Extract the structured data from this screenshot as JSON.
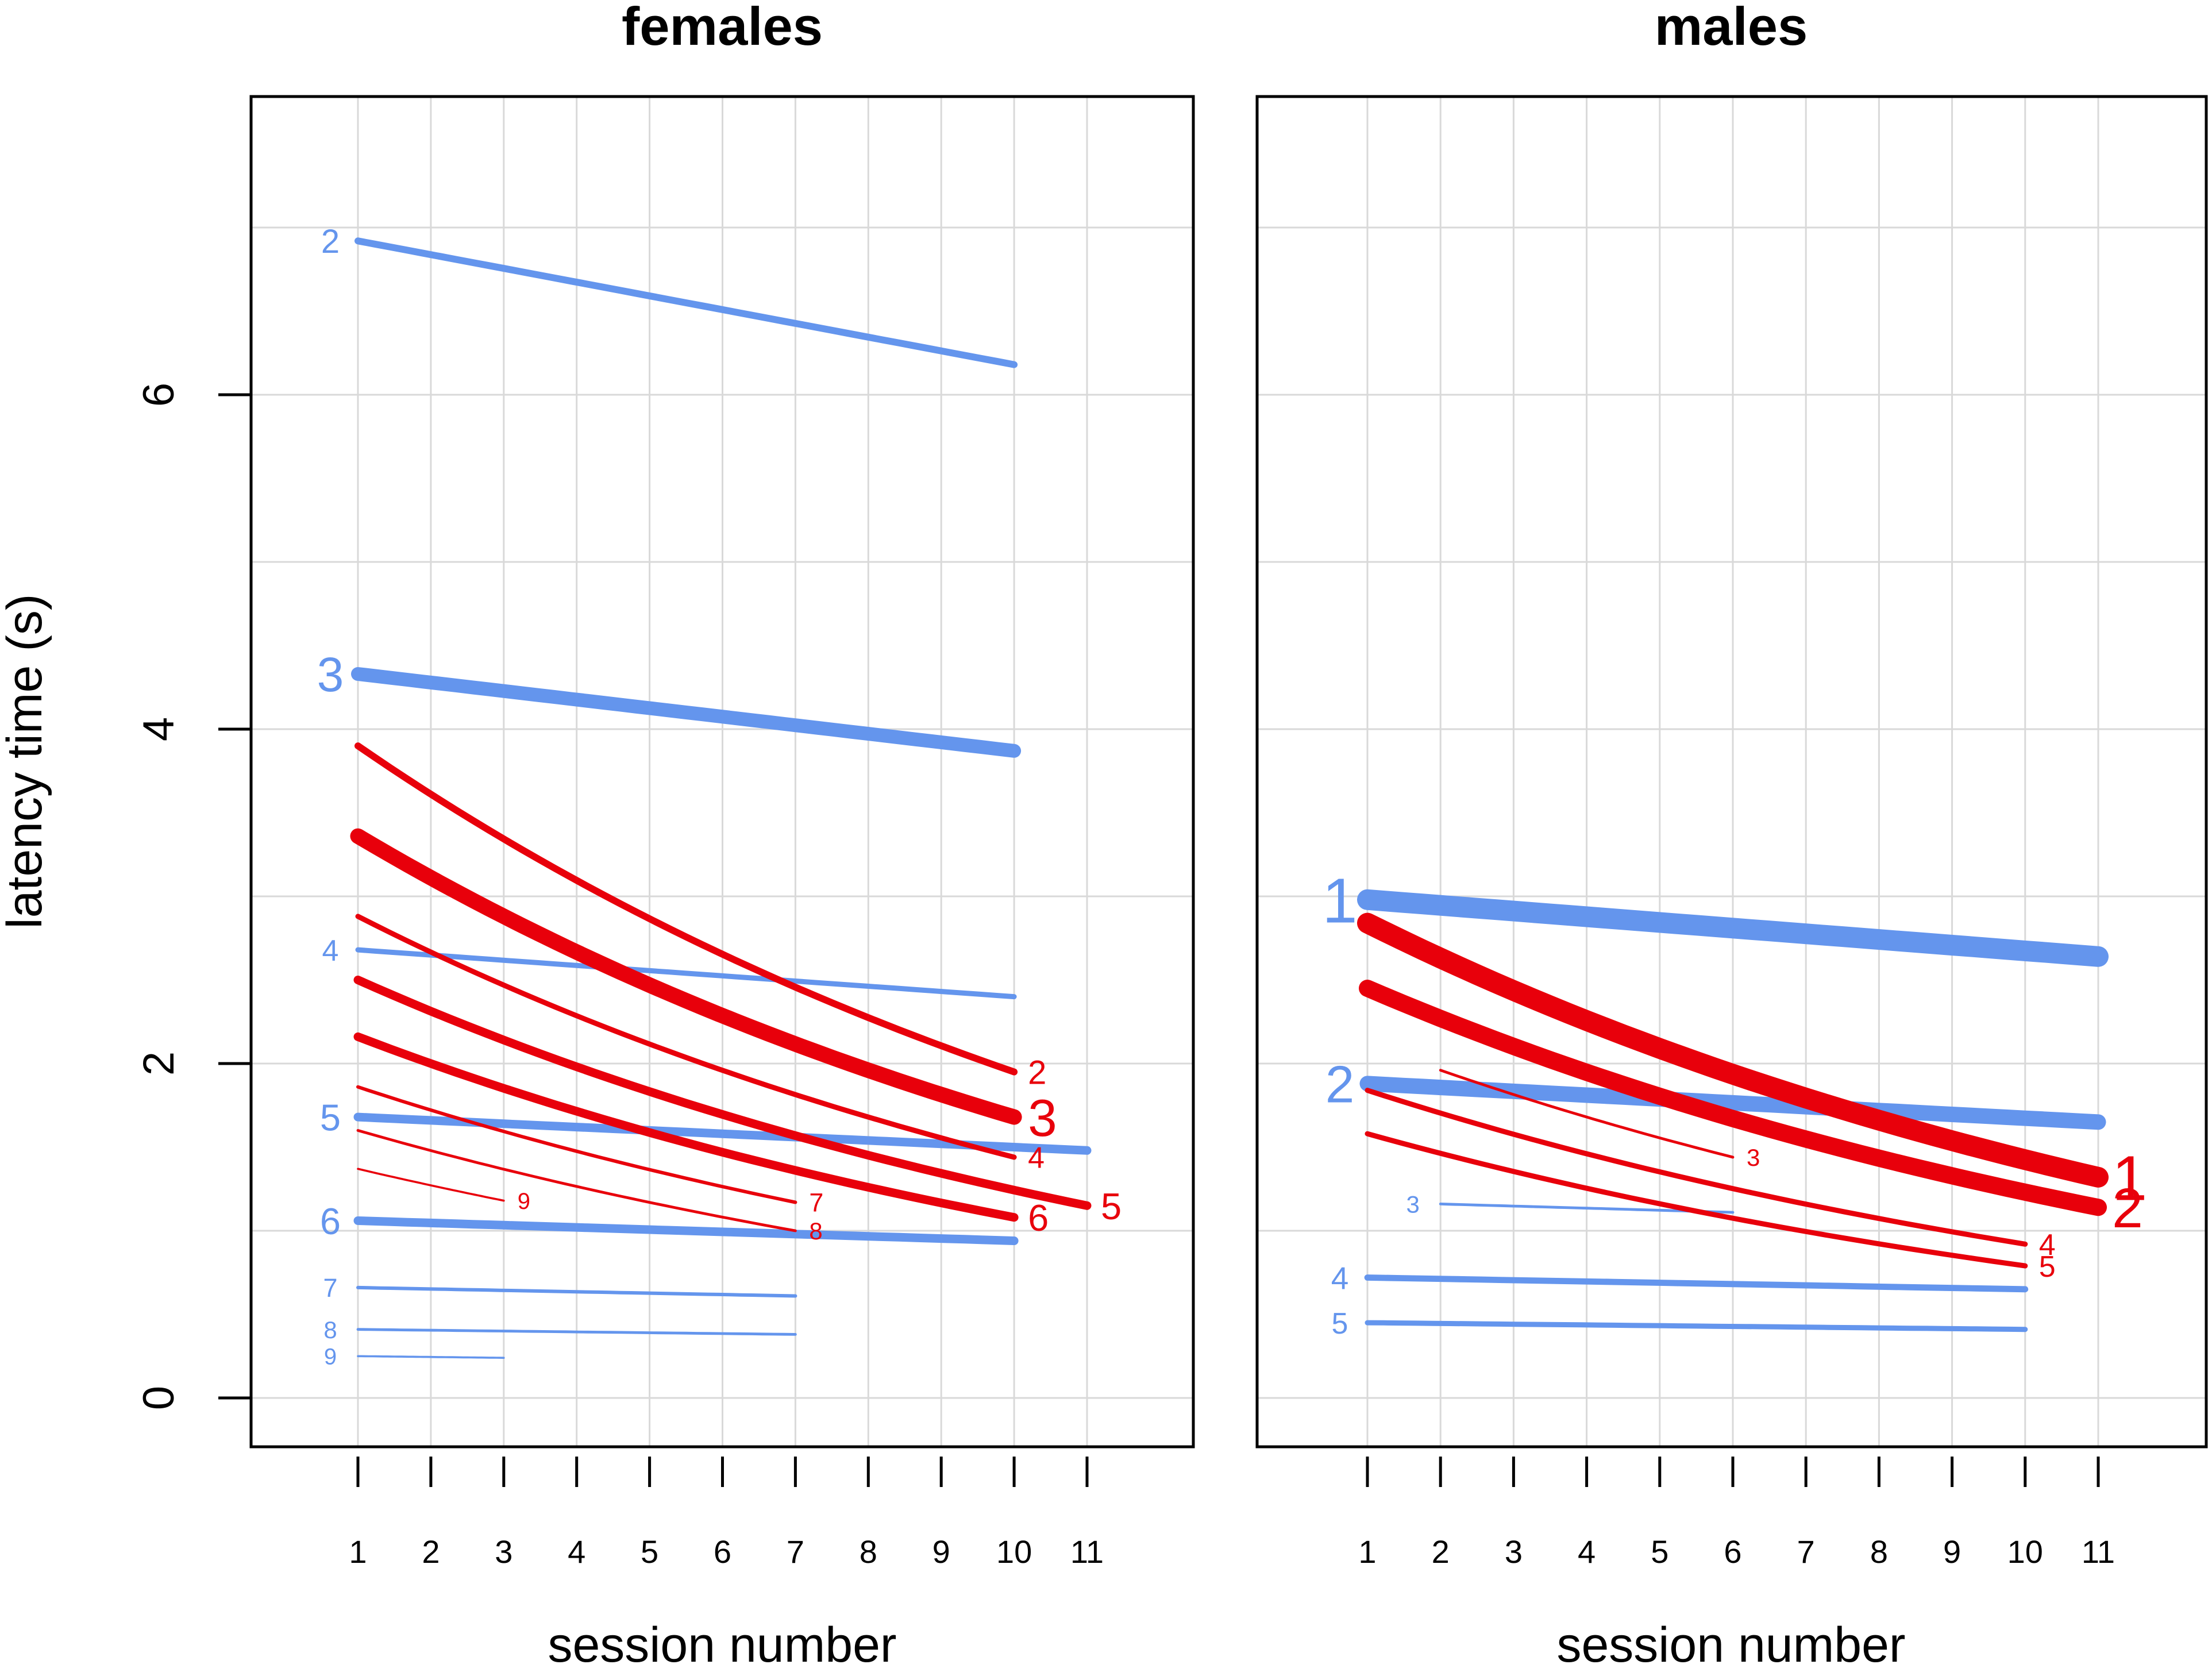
{
  "chart_data": [
    {
      "type": "line",
      "title": "females",
      "xlabel": "session number",
      "ylabel": "latency time (s)",
      "xlim": [
        1,
        11
      ],
      "ylim": [
        0,
        7.5
      ],
      "xticks": [
        "1",
        "2",
        "3",
        "4",
        "5",
        "6",
        "7",
        "8",
        "9",
        "10",
        "11"
      ],
      "yticks": [
        "0",
        "2",
        "4",
        "6"
      ],
      "series": [
        {
          "name": "2",
          "color": "#6495ED",
          "weight": 2,
          "start_x": 1,
          "end_x": 10,
          "start_y": 6.92,
          "end_y": 6.18,
          "label_side": "left"
        },
        {
          "name": "3",
          "color": "#6495ED",
          "weight": 4,
          "start_x": 1,
          "end_x": 10,
          "start_y": 4.33,
          "end_y": 3.87,
          "label_side": "left"
        },
        {
          "name": "4",
          "color": "#6495ED",
          "weight": 1.5,
          "start_x": 1,
          "end_x": 10,
          "start_y": 2.68,
          "end_y": 2.4,
          "label_side": "left"
        },
        {
          "name": "5",
          "color": "#6495ED",
          "weight": 2.5,
          "start_x": 1,
          "end_x": 11,
          "start_y": 1.68,
          "end_y": 1.48,
          "label_side": "left"
        },
        {
          "name": "6",
          "color": "#6495ED",
          "weight": 2.5,
          "start_x": 1,
          "end_x": 10,
          "start_y": 1.06,
          "end_y": 0.94,
          "label_side": "left"
        },
        {
          "name": "7",
          "color": "#6495ED",
          "weight": 1,
          "start_x": 1,
          "end_x": 7,
          "start_y": 0.66,
          "end_y": 0.61,
          "label_side": "left"
        },
        {
          "name": "8",
          "color": "#6495ED",
          "weight": 0.8,
          "start_x": 1,
          "end_x": 7,
          "start_y": 0.41,
          "end_y": 0.38,
          "label_side": "left"
        },
        {
          "name": "9",
          "color": "#6495ED",
          "weight": 0.6,
          "start_x": 1,
          "end_x": 3,
          "start_y": 0.25,
          "end_y": 0.24,
          "label_side": "left"
        },
        {
          "name": "2",
          "color": "#E8000B",
          "weight": 2,
          "start_x": 1,
          "end_x": 10,
          "start_y": 3.9,
          "end_y": 1.95,
          "label_side": "right"
        },
        {
          "name": "3",
          "color": "#E8000B",
          "weight": 4.5,
          "start_x": 1,
          "end_x": 10,
          "start_y": 3.36,
          "end_y": 1.68,
          "label_side": "right"
        },
        {
          "name": "4",
          "color": "#E8000B",
          "weight": 1.5,
          "start_x": 1,
          "end_x": 10,
          "start_y": 2.88,
          "end_y": 1.44,
          "label_side": "right"
        },
        {
          "name": "5",
          "color": "#E8000B",
          "weight": 2.5,
          "start_x": 1,
          "end_x": 11,
          "start_y": 2.5,
          "end_y": 1.15,
          "label_side": "right"
        },
        {
          "name": "6",
          "color": "#E8000B",
          "weight": 2.5,
          "start_x": 1,
          "end_x": 10,
          "start_y": 2.16,
          "end_y": 1.08,
          "label_side": "right"
        },
        {
          "name": "7",
          "color": "#E8000B",
          "weight": 1,
          "start_x": 1,
          "end_x": 7,
          "start_y": 1.86,
          "end_y": 1.17,
          "label_side": "right"
        },
        {
          "name": "8",
          "color": "#E8000B",
          "weight": 0.8,
          "start_x": 1,
          "end_x": 7,
          "start_y": 1.6,
          "end_y": 1.0,
          "label_side": "right"
        },
        {
          "name": "9",
          "color": "#E8000B",
          "weight": 0.6,
          "start_x": 1,
          "end_x": 3,
          "start_y": 1.37,
          "end_y": 1.18,
          "label_side": "right"
        }
      ]
    },
    {
      "type": "line",
      "title": "males",
      "xlabel": "session number",
      "xlim": [
        1,
        11
      ],
      "ylim": [
        0,
        7.5
      ],
      "xticks": [
        "1",
        "2",
        "3",
        "4",
        "5",
        "6",
        "7",
        "8",
        "9",
        "10",
        "11"
      ],
      "series": [
        {
          "name": "1",
          "color": "#6495ED",
          "weight": 6,
          "start_x": 1,
          "end_x": 11,
          "start_y": 2.98,
          "end_y": 2.64,
          "label_side": "left"
        },
        {
          "name": "2",
          "color": "#6495ED",
          "weight": 4.5,
          "start_x": 1,
          "end_x": 11,
          "start_y": 1.88,
          "end_y": 1.65,
          "label_side": "left"
        },
        {
          "name": "3",
          "color": "#6495ED",
          "weight": 0.8,
          "start_x": 2,
          "end_x": 6,
          "start_y": 1.16,
          "end_y": 1.11,
          "label_side": "left"
        },
        {
          "name": "4",
          "color": "#6495ED",
          "weight": 1.8,
          "start_x": 1,
          "end_x": 10,
          "start_y": 0.72,
          "end_y": 0.65,
          "label_side": "left"
        },
        {
          "name": "5",
          "color": "#6495ED",
          "weight": 1.5,
          "start_x": 1,
          "end_x": 10,
          "start_y": 0.45,
          "end_y": 0.41,
          "label_side": "left"
        },
        {
          "name": "1",
          "color": "#E8000B",
          "weight": 6,
          "start_x": 1,
          "end_x": 11,
          "start_y": 2.84,
          "end_y": 1.32,
          "label_side": "right"
        },
        {
          "name": "2",
          "color": "#E8000B",
          "weight": 5,
          "start_x": 1,
          "end_x": 11,
          "start_y": 2.45,
          "end_y": 1.14,
          "label_side": "right"
        },
        {
          "name": "3",
          "color": "#E8000B",
          "weight": 0.8,
          "start_x": 2,
          "end_x": 6,
          "start_y": 1.96,
          "end_y": 1.44,
          "label_side": "right"
        },
        {
          "name": "4",
          "color": "#E8000B",
          "weight": 1.5,
          "start_x": 1,
          "end_x": 10,
          "start_y": 1.84,
          "end_y": 0.92,
          "label_side": "right"
        },
        {
          "name": "5",
          "color": "#E8000B",
          "weight": 1.5,
          "start_x": 1,
          "end_x": 10,
          "start_y": 1.58,
          "end_y": 0.79,
          "label_side": "right"
        }
      ]
    }
  ]
}
